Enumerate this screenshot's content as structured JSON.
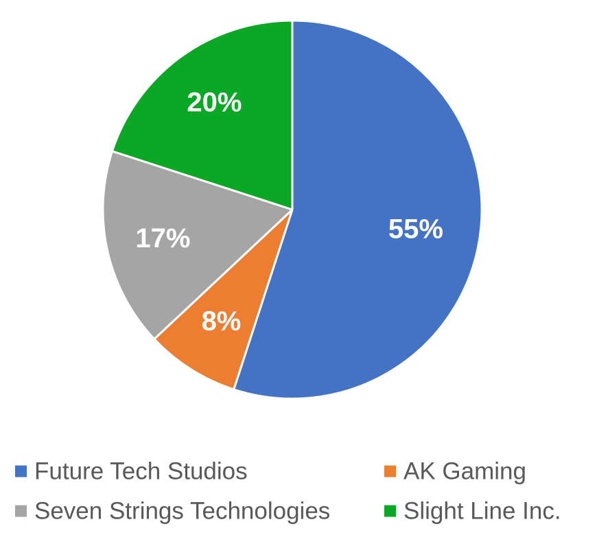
{
  "chart_data": {
    "type": "pie",
    "title": "",
    "categories": [
      "Future Tech Studios",
      "AK Gaming",
      "Seven Strings Technologies",
      "Slight Line Inc."
    ],
    "values": [
      55,
      8,
      17,
      20
    ],
    "data_labels": [
      "55%",
      "8%",
      "17%",
      "20%"
    ],
    "colors": [
      "#4472C4",
      "#ED7D31",
      "#A5A5A5",
      "#0AA825"
    ],
    "start_angle_deg": 0,
    "direction": "clockwise",
    "legend": {
      "placement": "bottom",
      "entries": [
        "Future Tech Studios",
        "AK Gaming",
        "Seven Strings Technologies",
        "Slight Line Inc."
      ]
    }
  }
}
